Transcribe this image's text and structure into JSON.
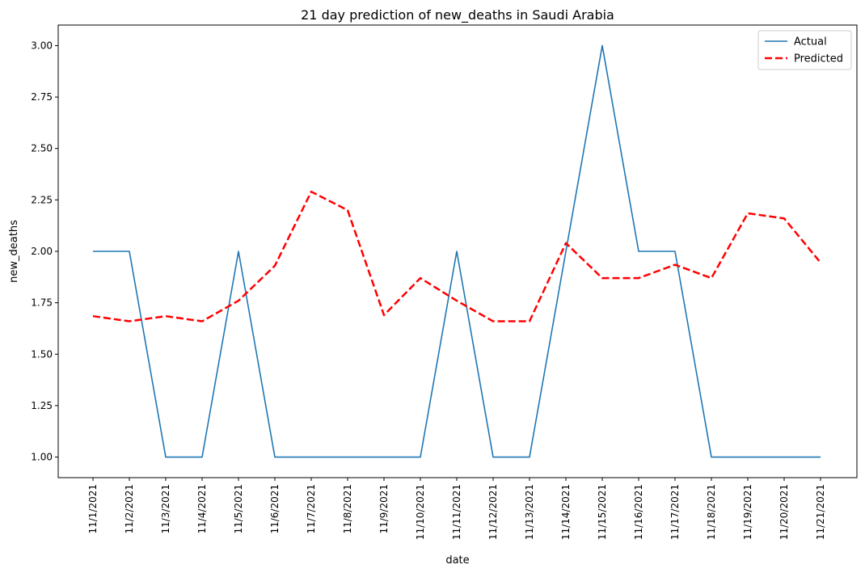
{
  "chart_data": {
    "type": "line",
    "title": "21 day prediction of new_deaths in Saudi Arabia",
    "xlabel": "date",
    "ylabel": "new_deaths",
    "categories": [
      "11/1/2021",
      "11/2/2021",
      "11/3/2021",
      "11/4/2021",
      "11/5/2021",
      "11/6/2021",
      "11/7/2021",
      "11/8/2021",
      "11/9/2021",
      "11/10/2021",
      "11/11/2021",
      "11/12/2021",
      "11/13/2021",
      "11/14/2021",
      "11/15/2021",
      "11/16/2021",
      "11/17/2021",
      "11/18/2021",
      "11/19/2021",
      "11/20/2021",
      "11/21/2021"
    ],
    "ylim": [
      0.9,
      3.1
    ],
    "yticks": [
      1.0,
      1.25,
      1.5,
      1.75,
      2.0,
      2.25,
      2.5,
      2.75,
      3.0
    ],
    "ytick_labels": [
      "1.00",
      "1.25",
      "1.50",
      "1.75",
      "2.00",
      "2.25",
      "2.50",
      "2.75",
      "3.00"
    ],
    "grid": false,
    "legend_position": "top-right",
    "series": [
      {
        "name": "Actual",
        "color": "#1f77b4",
        "style": "solid",
        "values": [
          2,
          2,
          1,
          1,
          2,
          1,
          1,
          1,
          1,
          1,
          2,
          1,
          1,
          2,
          3,
          2,
          2,
          1,
          1,
          1,
          1
        ]
      },
      {
        "name": "Predicted",
        "color": "#ff0000",
        "style": "dashed",
        "values": [
          1.685,
          1.66,
          1.685,
          1.66,
          1.76,
          1.93,
          2.29,
          2.2,
          1.69,
          1.87,
          1.76,
          1.66,
          1.66,
          2.04,
          1.87,
          1.87,
          1.935,
          1.87,
          2.185,
          2.16,
          1.945
        ]
      }
    ]
  }
}
